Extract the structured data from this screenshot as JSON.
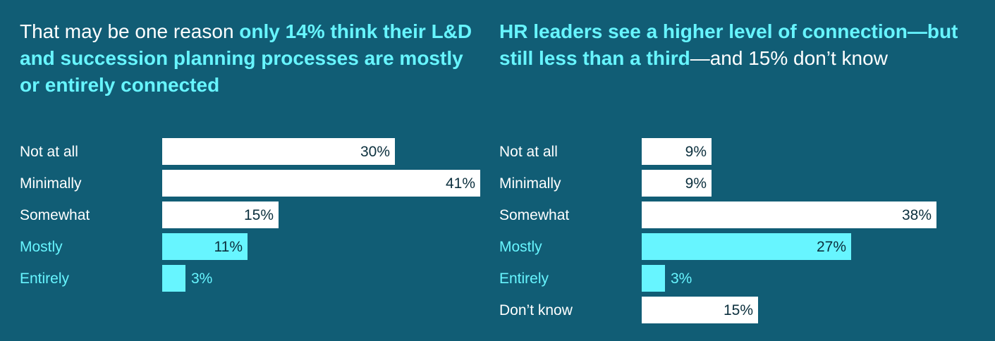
{
  "colors": {
    "background": "#115d75",
    "bar_default": "#ffffff",
    "bar_accent": "#67f5ff",
    "text_light": "#ffffff",
    "text_accent": "#67f5ff",
    "value_text_dark": "#0b2f3d"
  },
  "chart_data": [
    {
      "type": "bar",
      "orientation": "horizontal",
      "title_parts": [
        {
          "text": "That may be one reason ",
          "accent": false
        },
        {
          "text": "only 14% think their L&D and succession planning processes are mostly or entirely connected",
          "accent": true
        }
      ],
      "categories": [
        "Not at all",
        "Minimally",
        "Somewhat",
        "Mostly",
        "Entirely"
      ],
      "values": [
        30,
        41,
        15,
        11,
        3
      ],
      "value_labels": [
        "30%",
        "41%",
        "15%",
        "11%",
        "3%"
      ],
      "highlight": [
        false,
        false,
        false,
        true,
        true
      ],
      "xlim": [
        0,
        41
      ],
      "grid": false
    },
    {
      "type": "bar",
      "orientation": "horizontal",
      "title_parts": [
        {
          "text": "HR leaders see a higher level of connection—but still less than a third",
          "accent": true
        },
        {
          "text": "—and 15% don’t know",
          "accent": false
        }
      ],
      "categories": [
        "Not at all",
        "Minimally",
        "Somewhat",
        "Mostly",
        "Entirely",
        "Don’t know"
      ],
      "values": [
        9,
        9,
        38,
        27,
        3,
        15
      ],
      "value_labels": [
        "9%",
        "9%",
        "38%",
        "27%",
        "3%",
        "15%"
      ],
      "highlight": [
        false,
        false,
        false,
        true,
        true,
        false
      ],
      "xlim": [
        0,
        38
      ],
      "grid": false
    }
  ]
}
